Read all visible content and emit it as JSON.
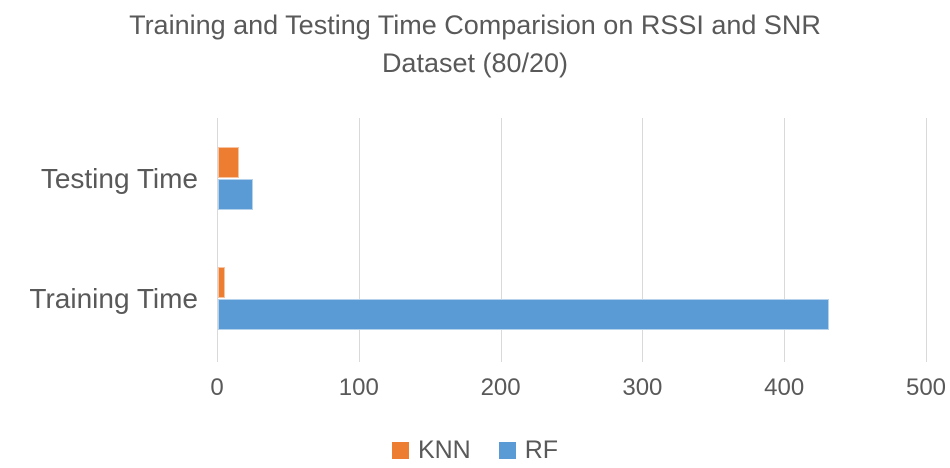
{
  "title": {
    "line1": "Training and Testing Time Comparision  on RSSI and SNR",
    "line2": "Dataset (80/20)"
  },
  "chart_data": {
    "type": "bar",
    "orientation": "horizontal",
    "title": "Training and Testing Time Comparision on RSSI and SNR Dataset (80/20)",
    "categories": [
      "Testing Time",
      "Training Time"
    ],
    "series": [
      {
        "name": "KNN",
        "color": "#ED7D31",
        "values": [
          15,
          5
        ]
      },
      {
        "name": "RF",
        "color": "#5B9BD5",
        "values": [
          25,
          431
        ]
      }
    ],
    "x_ticks": [
      0,
      100,
      200,
      300,
      400,
      500
    ],
    "xlim": [
      0,
      500
    ],
    "grid": true,
    "legend_position": "bottom"
  },
  "colors": {
    "text": "#595959",
    "gridline": "#D9D9D9",
    "background": "#FFFFFF"
  }
}
